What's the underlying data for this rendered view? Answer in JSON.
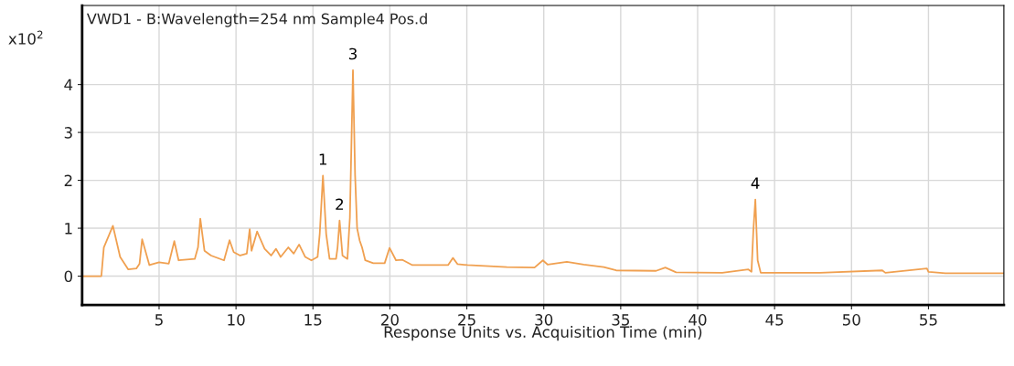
{
  "chart_data": {
    "type": "line",
    "title": "VWD1 - B:Wavelength=254 nm Sample4 Pos.d",
    "xlabel": "Response Units vs. Acquisition Time (min)",
    "annotations": [
      "x10$^{2}$",
      {
        "text": "1",
        "x": 15.65,
        "y": 2.1
      },
      {
        "text": "2",
        "x": 16.73,
        "y": 1.16
      },
      {
        "text": "3",
        "x": 17.6,
        "y": 4.3
      },
      {
        "text": "4",
        "x": 43.75,
        "y": 1.6
      }
    ],
    "series": [
      {
        "color": "#f0a050",
        "x": [
          0,
          1.25,
          1.41,
          2.0,
          2.47,
          3.0,
          3.52,
          3.73,
          3.9,
          4.37,
          5.0,
          5.63,
          5.99,
          6.27,
          7.32,
          7.53,
          7.68,
          7.95,
          8.38,
          9.22,
          9.58,
          9.85,
          10.27,
          10.7,
          10.89,
          11.01,
          11.37,
          11.86,
          12.28,
          12.6,
          12.9,
          13.4,
          13.75,
          14.1,
          14.5,
          14.9,
          15.3,
          15.44,
          15.65,
          15.86,
          16.08,
          16.5,
          16.6,
          16.73,
          16.92,
          17.24,
          17.4,
          17.6,
          17.74,
          17.87,
          18.04,
          18.19,
          18.4,
          18.92,
          19.66,
          19.98,
          20.4,
          20.82,
          21.46,
          23.78,
          24.1,
          24.4,
          25.04,
          27.6,
          29.4,
          29.94,
          30.26,
          31.5,
          32.6,
          33.9,
          34.7,
          37.3,
          37.9,
          38.6,
          41.6,
          43.3,
          43.5,
          43.62,
          43.75,
          43.9,
          44.1,
          47.95,
          52.0,
          52.2,
          54.9,
          55.0,
          56.1,
          59.9
        ],
        "values": [
          0,
          0,
          0.6,
          1.05,
          0.4,
          0.14,
          0.16,
          0.26,
          0.77,
          0.23,
          0.29,
          0.26,
          0.73,
          0.33,
          0.36,
          0.6,
          1.2,
          0.53,
          0.43,
          0.33,
          0.75,
          0.5,
          0.43,
          0.47,
          0.98,
          0.53,
          0.93,
          0.57,
          0.43,
          0.57,
          0.4,
          0.6,
          0.47,
          0.66,
          0.4,
          0.33,
          0.4,
          0.88,
          2.1,
          0.88,
          0.36,
          0.36,
          0.6,
          1.16,
          0.43,
          0.36,
          1.22,
          4.3,
          2.1,
          1.0,
          0.74,
          0.6,
          0.33,
          0.27,
          0.27,
          0.59,
          0.33,
          0.34,
          0.23,
          0.23,
          0.38,
          0.25,
          0.23,
          0.19,
          0.18,
          0.33,
          0.24,
          0.3,
          0.24,
          0.19,
          0.12,
          0.11,
          0.18,
          0.08,
          0.07,
          0.14,
          0.09,
          0.95,
          1.6,
          0.33,
          0.07,
          0.07,
          0.12,
          0.07,
          0.16,
          0.09,
          0.06,
          0.06
        ]
      }
    ],
    "xlim": [
      0,
      59.9
    ],
    "ylim": [
      -0.6,
      5.65
    ],
    "xticks": [
      5,
      10,
      15,
      20,
      25,
      30,
      35,
      40,
      45,
      50,
      55
    ],
    "yticks": [
      0,
      1,
      2,
      3,
      4
    ],
    "grid": true
  }
}
